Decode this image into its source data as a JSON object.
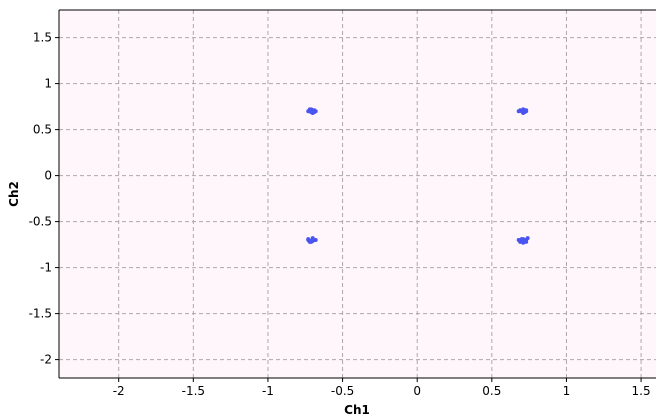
{
  "chart_data": {
    "type": "scatter",
    "xlabel": "Ch1",
    "ylabel": "Ch2",
    "xlim": [
      -2.4,
      1.6
    ],
    "ylim": [
      -2.2,
      1.8
    ],
    "x_ticks": [
      -2,
      -1.5,
      -1,
      -0.5,
      0,
      0.5,
      1,
      1.5
    ],
    "y_ticks": [
      1.5,
      1,
      0.5,
      0,
      -0.5,
      -1,
      -1.5,
      -2
    ],
    "x_tick_labels": [
      "-2",
      "-1.5",
      "-1",
      "-0.5",
      "0",
      "0.5",
      "1",
      "1.5"
    ],
    "y_tick_labels": [
      "1.5",
      "1",
      "0.5",
      "0",
      "-0.5",
      "-1",
      "-1.5",
      "-2"
    ],
    "grid": true,
    "series": [
      {
        "color": "#4a55f0",
        "x": [
          -0.72,
          -0.7,
          -0.69,
          -0.73,
          -0.71,
          -0.7,
          -0.68,
          -0.72,
          -0.71,
          -0.69,
          -0.7,
          -0.72,
          0.7,
          0.72,
          0.71,
          0.73,
          0.69,
          0.71,
          0.72,
          0.7,
          0.71,
          0.73,
          0.72,
          0.68,
          -0.73,
          -0.71,
          -0.7,
          -0.69,
          -0.72,
          -0.7,
          -0.68,
          -0.71,
          -0.73,
          -0.7,
          -0.69,
          -0.71,
          0.7,
          0.72,
          0.71,
          0.74,
          0.69,
          0.73,
          0.71,
          0.72,
          0.7,
          0.73,
          0.68,
          0.72
        ],
        "y": [
          0.7,
          0.71,
          0.69,
          0.7,
          0.72,
          0.68,
          0.7,
          0.71,
          0.69,
          0.71,
          0.7,
          0.72,
          0.7,
          0.71,
          0.69,
          0.7,
          0.71,
          0.72,
          0.69,
          0.7,
          0.68,
          0.71,
          0.7,
          0.7,
          -0.7,
          -0.71,
          -0.69,
          -0.7,
          -0.72,
          -0.68,
          -0.7,
          -0.71,
          -0.69,
          -0.71,
          -0.7,
          -0.72,
          -0.7,
          -0.71,
          -0.69,
          -0.68,
          -0.72,
          -0.7,
          -0.73,
          -0.71,
          -0.69,
          -0.72,
          -0.7,
          -0.7
        ]
      }
    ]
  }
}
